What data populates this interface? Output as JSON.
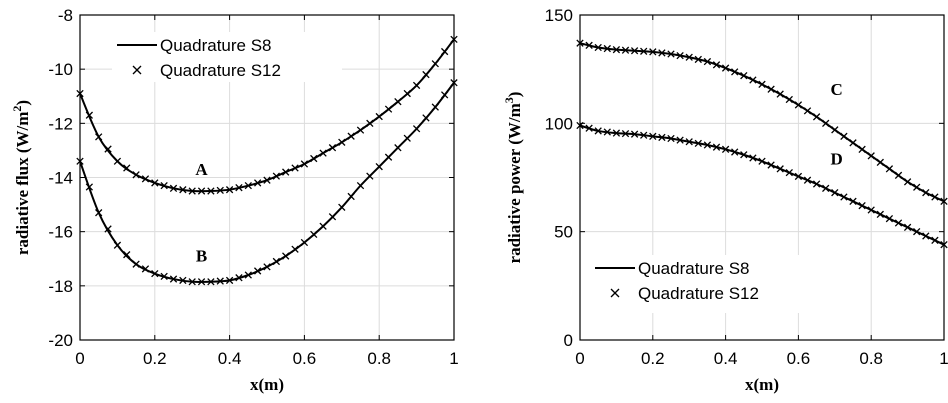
{
  "chart_data": [
    {
      "type": "line",
      "xlabel": "x(m)",
      "ylabel": "radiative flux (W/m",
      "ylabel_sup": "2",
      "ylabel_close": ")",
      "xlim": [
        0,
        1
      ],
      "ylim": [
        -20,
        -8
      ],
      "xticks": [
        0,
        0.2,
        0.4,
        0.6,
        0.8,
        1
      ],
      "xtick_labels": [
        "0",
        "0.2",
        "0.4",
        "0.6",
        "0.8",
        "1"
      ],
      "yticks": [
        -20,
        -18,
        -16,
        -14,
        -12,
        -10,
        -8
      ],
      "ytick_labels": [
        "-20",
        "-18",
        "-16",
        "-14",
        "-12",
        "-10",
        "-8"
      ],
      "grid": true,
      "legend": {
        "placement": "top-left",
        "entries": [
          "Quadrature S8",
          "Quadrature S12"
        ]
      },
      "curve_labels": [
        {
          "text": "A",
          "x": 0.325,
          "y": -13.9
        },
        {
          "text": "B",
          "x": 0.325,
          "y": -17.1
        }
      ],
      "series": [
        {
          "curve": "A",
          "x": [
            0,
            0.05,
            0.1,
            0.15,
            0.2,
            0.25,
            0.3,
            0.35,
            0.4,
            0.45,
            0.5,
            0.55,
            0.6,
            0.65,
            0.7,
            0.75,
            0.8,
            0.85,
            0.9,
            0.95,
            1
          ],
          "S8": [
            -10.9,
            -12.5,
            -13.4,
            -13.9,
            -14.2,
            -14.4,
            -14.5,
            -14.5,
            -14.45,
            -14.3,
            -14.1,
            -13.8,
            -13.5,
            -13.1,
            -12.7,
            -12.25,
            -11.75,
            -11.2,
            -10.6,
            -9.8,
            -8.9
          ],
          "S12": [
            -10.9,
            -12.5,
            -13.4,
            -13.9,
            -14.2,
            -14.4,
            -14.5,
            -14.5,
            -14.45,
            -14.3,
            -14.1,
            -13.8,
            -13.5,
            -13.1,
            -12.7,
            -12.25,
            -11.75,
            -11.2,
            -10.6,
            -9.8,
            -8.9
          ]
        },
        {
          "curve": "B",
          "x": [
            0,
            0.05,
            0.1,
            0.15,
            0.2,
            0.25,
            0.3,
            0.35,
            0.4,
            0.45,
            0.5,
            0.55,
            0.6,
            0.65,
            0.7,
            0.75,
            0.8,
            0.85,
            0.9,
            0.95,
            1
          ],
          "S8": [
            -13.4,
            -15.3,
            -16.5,
            -17.2,
            -17.55,
            -17.75,
            -17.85,
            -17.85,
            -17.8,
            -17.6,
            -17.3,
            -16.9,
            -16.4,
            -15.8,
            -15.1,
            -14.3,
            -13.6,
            -12.9,
            -12.2,
            -11.4,
            -10.5
          ],
          "S12": [
            -13.4,
            -15.3,
            -16.5,
            -17.2,
            -17.55,
            -17.75,
            -17.85,
            -17.85,
            -17.8,
            -17.6,
            -17.3,
            -16.9,
            -16.4,
            -15.8,
            -15.1,
            -14.3,
            -13.6,
            -12.9,
            -12.2,
            -11.4,
            -10.5
          ]
        }
      ]
    },
    {
      "type": "line",
      "xlabel": "x(m)",
      "ylabel": "radiative power (W/m",
      "ylabel_sup": "3",
      "ylabel_close": ")",
      "xlim": [
        0,
        1
      ],
      "ylim": [
        0,
        150
      ],
      "xticks": [
        0,
        0.2,
        0.4,
        0.6,
        0.8,
        1
      ],
      "xtick_labels": [
        "0",
        "0.2",
        "0.4",
        "0.6",
        "0.8",
        "1"
      ],
      "yticks": [
        0,
        50,
        100,
        150
      ],
      "ytick_labels": [
        "0",
        "50",
        "100",
        "150"
      ],
      "grid": true,
      "legend": {
        "placement": "bottom-left",
        "entries": [
          "Quadrature S8",
          "Quadrature S12"
        ]
      },
      "curve_labels": [
        {
          "text": "C",
          "x": 0.705,
          "y": 113
        },
        {
          "text": "D",
          "x": 0.705,
          "y": 81
        }
      ],
      "series": [
        {
          "curve": "C",
          "x": [
            0,
            0.05,
            0.1,
            0.15,
            0.2,
            0.25,
            0.3,
            0.35,
            0.4,
            0.45,
            0.5,
            0.55,
            0.6,
            0.65,
            0.7,
            0.75,
            0.8,
            0.85,
            0.9,
            0.95,
            1
          ],
          "S8": [
            137,
            135,
            134,
            133.5,
            133,
            132,
            130.5,
            128.5,
            125.5,
            122,
            118,
            113.5,
            108.5,
            103,
            97,
            91,
            85,
            79,
            73,
            68,
            64
          ],
          "S12": [
            137,
            135,
            134,
            133.5,
            133,
            132,
            130.5,
            128.5,
            125.5,
            122,
            118,
            113.5,
            108.5,
            103,
            97,
            91,
            85,
            79,
            73,
            68,
            64
          ]
        },
        {
          "curve": "D",
          "x": [
            0,
            0.05,
            0.1,
            0.15,
            0.2,
            0.25,
            0.3,
            0.35,
            0.4,
            0.45,
            0.5,
            0.55,
            0.6,
            0.65,
            0.7,
            0.75,
            0.8,
            0.85,
            0.9,
            0.95,
            1
          ],
          "S8": [
            99,
            96.5,
            95.5,
            95,
            94,
            93,
            91.5,
            90,
            88,
            85.5,
            82.5,
            79,
            75.5,
            72,
            68,
            64,
            60,
            56,
            52,
            48,
            44
          ],
          "S12": [
            99,
            96.5,
            95.5,
            95,
            94,
            93,
            91.5,
            90,
            88,
            85.5,
            82.5,
            79,
            75.5,
            72,
            68,
            64,
            60,
            56,
            52,
            48,
            44
          ]
        }
      ]
    }
  ]
}
